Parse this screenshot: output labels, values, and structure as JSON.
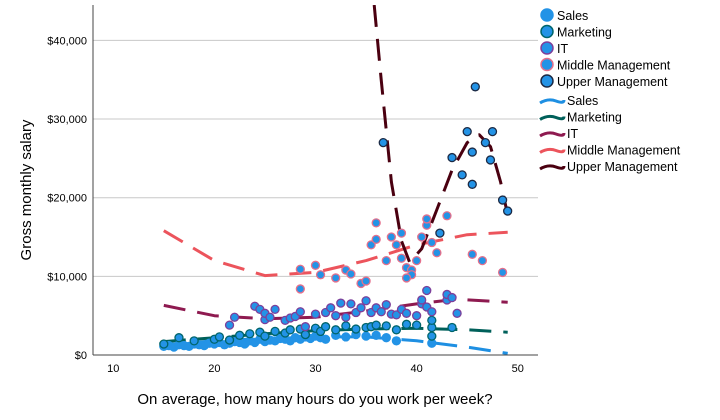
{
  "chart_data": {
    "type": "scatter",
    "title": "",
    "xlabel": "On average, how many hours do you work per week?",
    "ylabel": "Gross monthly salary",
    "xlim": [
      8,
      52
    ],
    "ylim": [
      0,
      44500
    ],
    "xticks": [
      10,
      20,
      30,
      40,
      50
    ],
    "xtick_labels": [
      "10",
      "20",
      "30",
      "40",
      "50"
    ],
    "yticks": [
      0,
      10000,
      20000,
      30000,
      40000
    ],
    "ytick_labels": [
      "$0",
      "$10,000",
      "$20,000",
      "$30,000",
      "$40,000"
    ],
    "grid": "horizontal",
    "legend_placement": "right",
    "point_fill": "#2393e6",
    "series": [
      {
        "name": "Sales",
        "outline": "#2393e6",
        "line_color": "#1e8fe2",
        "points": [
          [
            15,
            1100
          ],
          [
            15.5,
            1200
          ],
          [
            16,
            1000
          ],
          [
            16.5,
            1300
          ],
          [
            17,
            1200
          ],
          [
            17.5,
            1100
          ],
          [
            18,
            1400
          ],
          [
            18.5,
            1300
          ],
          [
            19,
            1200
          ],
          [
            19.5,
            1500
          ],
          [
            20,
            1400
          ],
          [
            20.5,
            1600
          ],
          [
            21,
            1300
          ],
          [
            21.5,
            1500
          ],
          [
            22,
            1700
          ],
          [
            22.5,
            1600
          ],
          [
            23,
            1400
          ],
          [
            23.5,
            1800
          ],
          [
            24,
            1600
          ],
          [
            24.5,
            2000
          ],
          [
            25,
            1700
          ],
          [
            25.5,
            1900
          ],
          [
            26,
            1800
          ],
          [
            26.5,
            2100
          ],
          [
            27,
            2000
          ],
          [
            27.5,
            1800
          ],
          [
            28,
            2200
          ],
          [
            28.5,
            2000
          ],
          [
            29,
            2300
          ],
          [
            29.5,
            2100
          ],
          [
            30,
            2400
          ],
          [
            30.5,
            2200
          ],
          [
            31,
            2000
          ],
          [
            32,
            2500
          ],
          [
            33,
            2300
          ],
          [
            34,
            2600
          ],
          [
            35,
            2400
          ],
          [
            36,
            2500
          ],
          [
            37,
            2200
          ],
          [
            38,
            1800
          ],
          [
            41.5,
            1500
          ]
        ],
        "fit": [
          [
            15,
            1300
          ],
          [
            20,
            1800
          ],
          [
            25,
            2100
          ],
          [
            30,
            2300
          ],
          [
            35,
            2300
          ],
          [
            40,
            1800
          ],
          [
            45,
            1000
          ],
          [
            49,
            200
          ]
        ]
      },
      {
        "name": "Marketing",
        "outline": "#00656b",
        "line_color": "#00605a",
        "points": [
          [
            15,
            1400
          ],
          [
            16.5,
            2200
          ],
          [
            18,
            1800
          ],
          [
            20,
            2000
          ],
          [
            20.5,
            2300
          ],
          [
            21.5,
            1900
          ],
          [
            22.5,
            2500
          ],
          [
            23.5,
            2700
          ],
          [
            24.5,
            2900
          ],
          [
            25,
            2400
          ],
          [
            26,
            3000
          ],
          [
            27,
            2800
          ],
          [
            27.5,
            3200
          ],
          [
            28.5,
            3300
          ],
          [
            29,
            2600
          ],
          [
            30,
            3400
          ],
          [
            30.5,
            3000
          ],
          [
            31,
            3600
          ],
          [
            32,
            3200
          ],
          [
            33,
            3700
          ],
          [
            34,
            3300
          ],
          [
            35,
            3500
          ],
          [
            35.5,
            3600
          ],
          [
            36,
            3800
          ],
          [
            37,
            3700
          ],
          [
            38,
            3200
          ],
          [
            39,
            3900
          ],
          [
            40,
            3800
          ],
          [
            41.5,
            3500
          ],
          [
            41.5,
            4400
          ],
          [
            41.5,
            2400
          ],
          [
            43.5,
            3500
          ]
        ],
        "fit": [
          [
            15,
            1700
          ],
          [
            20,
            2200
          ],
          [
            25,
            2700
          ],
          [
            30,
            3100
          ],
          [
            35,
            3300
          ],
          [
            40,
            3400
          ],
          [
            45,
            3200
          ],
          [
            49,
            2900
          ]
        ]
      },
      {
        "name": "IT",
        "outline": "#7d3f9a",
        "line_color": "#8e1a50",
        "points": [
          [
            21.5,
            3800
          ],
          [
            22,
            4800
          ],
          [
            24,
            6200
          ],
          [
            24.5,
            5800
          ],
          [
            25,
            4500
          ],
          [
            25,
            5300
          ],
          [
            25.5,
            4800
          ],
          [
            26,
            5800
          ],
          [
            27,
            4400
          ],
          [
            27.5,
            4700
          ],
          [
            28,
            4900
          ],
          [
            28.5,
            5500
          ],
          [
            29,
            3600
          ],
          [
            30,
            5200
          ],
          [
            31,
            5400
          ],
          [
            31.5,
            6000
          ],
          [
            32,
            5000
          ],
          [
            32.5,
            6600
          ],
          [
            33,
            4800
          ],
          [
            33.5,
            6500
          ],
          [
            34,
            5400
          ],
          [
            34.5,
            6000
          ],
          [
            35,
            6900
          ],
          [
            35.5,
            5400
          ],
          [
            36,
            6000
          ],
          [
            36.5,
            5500
          ],
          [
            37,
            6400
          ],
          [
            37.5,
            5200
          ],
          [
            38,
            5100
          ],
          [
            38.5,
            5800
          ],
          [
            39,
            5300
          ],
          [
            40,
            5000
          ],
          [
            40.5,
            6500
          ],
          [
            40.5,
            7000
          ],
          [
            41,
            8200
          ],
          [
            41,
            6100
          ],
          [
            41.5,
            5500
          ],
          [
            43,
            7000
          ],
          [
            43,
            7700
          ],
          [
            43.5,
            7300
          ],
          [
            44,
            5300
          ]
        ],
        "fit": [
          [
            15,
            6300
          ],
          [
            20,
            5000
          ],
          [
            25,
            4600
          ],
          [
            30,
            4800
          ],
          [
            35,
            5600
          ],
          [
            40,
            6500
          ],
          [
            44,
            7100
          ],
          [
            49,
            6700
          ]
        ]
      },
      {
        "name": "Middle Management",
        "outline": "#e4708c",
        "line_color": "#ec545c",
        "points": [
          [
            28.5,
            10900
          ],
          [
            28.5,
            8400
          ],
          [
            30,
            11400
          ],
          [
            30.5,
            10200
          ],
          [
            32,
            9800
          ],
          [
            33,
            10800
          ],
          [
            33.5,
            10300
          ],
          [
            34.5,
            9100
          ],
          [
            35,
            9400
          ],
          [
            35.5,
            14000
          ],
          [
            36,
            14700
          ],
          [
            37.5,
            15000
          ],
          [
            38,
            14000
          ],
          [
            38.5,
            12300
          ],
          [
            38.5,
            15500
          ],
          [
            39,
            11100
          ],
          [
            39.5,
            10800
          ],
          [
            39.5,
            10200
          ],
          [
            39,
            9800
          ],
          [
            40,
            12000
          ],
          [
            40.5,
            15000
          ],
          [
            41,
            16500
          ],
          [
            41,
            17300
          ],
          [
            41.5,
            14300
          ],
          [
            42,
            13000
          ],
          [
            43,
            17700
          ],
          [
            45.5,
            12800
          ],
          [
            46.5,
            12000
          ],
          [
            48.5,
            10500
          ],
          [
            37,
            12000
          ],
          [
            36,
            16800
          ]
        ],
        "fit": [
          [
            15,
            15800
          ],
          [
            20,
            12000
          ],
          [
            25,
            10100
          ],
          [
            30,
            10500
          ],
          [
            35,
            12000
          ],
          [
            40,
            14000
          ],
          [
            45,
            15300
          ],
          [
            49,
            15600
          ]
        ]
      },
      {
        "name": "Upper Management",
        "outline": "#1b2a45",
        "line_color": "#4a0010",
        "points": [
          [
            45.8,
            34100
          ],
          [
            45,
            28400
          ],
          [
            47.5,
            28400
          ],
          [
            46.8,
            27000
          ],
          [
            45.5,
            25800
          ],
          [
            47.3,
            24800
          ],
          [
            43.5,
            25100
          ],
          [
            44.5,
            22900
          ],
          [
            45.5,
            21700
          ],
          [
            48.5,
            19700
          ],
          [
            49,
            18300
          ],
          [
            42.3,
            15500
          ],
          [
            36.7,
            27000
          ]
        ],
        "fit": [
          [
            35.8,
            44500
          ],
          [
            36.5,
            35000
          ],
          [
            37.5,
            22000
          ],
          [
            38.5,
            14500
          ],
          [
            39.3,
            11800
          ],
          [
            40.5,
            13500
          ],
          [
            42,
            18500
          ],
          [
            43.5,
            23500
          ],
          [
            45,
            27000
          ],
          [
            46.2,
            28000
          ],
          [
            47.3,
            26500
          ],
          [
            48.3,
            22000
          ],
          [
            49,
            17800
          ]
        ]
      }
    ]
  }
}
